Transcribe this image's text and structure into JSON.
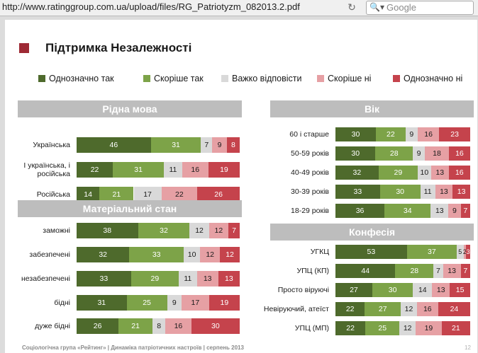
{
  "browser": {
    "url": "http://www.ratinggroup.com.ua/upload/files/RG_Patriotyzm_082013.2.pdf",
    "search_placeholder": "Google"
  },
  "slide": {
    "title": "Підтримка Незалежності",
    "footer": "Соціологічна група «Рейтинг» | Динаміка патріотичних настроїв | серпень 2013",
    "page_number": "12"
  },
  "colors": {
    "title_mark": "#9e2a35",
    "panel_header": "#bdbdbd",
    "categories": [
      "#4e6a2c",
      "#7da348",
      "#d9d9d9",
      "#e6a0a4",
      "#c5434c"
    ]
  },
  "legend": [
    "Однозначно так",
    "Скоріше так",
    "Важко відповісти",
    "Скоріше ні",
    "Однозначно ні"
  ],
  "chart_data": [
    {
      "type": "bar",
      "stacked": true,
      "orientation": "horizontal",
      "title": "Рідна мова",
      "series_names": [
        "Однозначно так",
        "Скоріше так",
        "Важко відповісти",
        "Скоріше ні",
        "Однозначно ні"
      ],
      "rows": [
        {
          "label": "Українська",
          "values": [
            46,
            31,
            7,
            9,
            8
          ]
        },
        {
          "label": "І українська, і російська",
          "values": [
            22,
            31,
            11,
            16,
            19
          ]
        },
        {
          "label": "Російська",
          "values": [
            14,
            21,
            17,
            22,
            26
          ]
        }
      ]
    },
    {
      "type": "bar",
      "stacked": true,
      "orientation": "horizontal",
      "title": "Матеріальний стан",
      "series_names": [
        "Однозначно так",
        "Скоріше так",
        "Важко відповісти",
        "Скоріше ні",
        "Однозначно ні"
      ],
      "rows": [
        {
          "label": "заможні",
          "values": [
            38,
            32,
            12,
            12,
            7
          ]
        },
        {
          "label": "забезпечені",
          "values": [
            32,
            33,
            10,
            12,
            12
          ]
        },
        {
          "label": "незабезпечені",
          "values": [
            33,
            29,
            11,
            13,
            13
          ]
        },
        {
          "label": "бідні",
          "values": [
            31,
            25,
            9,
            17,
            19
          ]
        },
        {
          "label": "дуже бідні",
          "values": [
            26,
            21,
            8,
            16,
            30
          ]
        }
      ]
    },
    {
      "type": "bar",
      "stacked": true,
      "orientation": "horizontal",
      "title": "Вік",
      "series_names": [
        "Однозначно так",
        "Скоріше так",
        "Важко відповісти",
        "Скоріше ні",
        "Однозначно ні"
      ],
      "rows": [
        {
          "label": "60 і старше",
          "values": [
            30,
            22,
            9,
            16,
            23
          ]
        },
        {
          "label": "50-59 років",
          "values": [
            30,
            28,
            9,
            18,
            16
          ]
        },
        {
          "label": "40-49 років",
          "values": [
            32,
            29,
            10,
            13,
            16
          ]
        },
        {
          "label": "30-39 років",
          "values": [
            33,
            30,
            11,
            13,
            13
          ]
        },
        {
          "label": "18-29 років",
          "values": [
            36,
            34,
            13,
            9,
            7
          ]
        }
      ]
    },
    {
      "type": "bar",
      "stacked": true,
      "orientation": "horizontal",
      "title": "Конфесія",
      "series_names": [
        "Однозначно так",
        "Скоріше так",
        "Важко відповісти",
        "Скоріше ні",
        "Однозначно ні"
      ],
      "rows": [
        {
          "label": "УГКЦ",
          "values": [
            53,
            37,
            5,
            2,
            3
          ]
        },
        {
          "label": "УПЦ (КП)",
          "values": [
            44,
            28,
            7,
            13,
            7
          ]
        },
        {
          "label": "Просто віруючі",
          "values": [
            27,
            30,
            14,
            13,
            15
          ]
        },
        {
          "label": "Невіруючий, атеїст",
          "values": [
            22,
            27,
            12,
            16,
            24
          ]
        },
        {
          "label": "УПЦ (МП)",
          "values": [
            22,
            25,
            12,
            19,
            21
          ]
        }
      ]
    }
  ]
}
